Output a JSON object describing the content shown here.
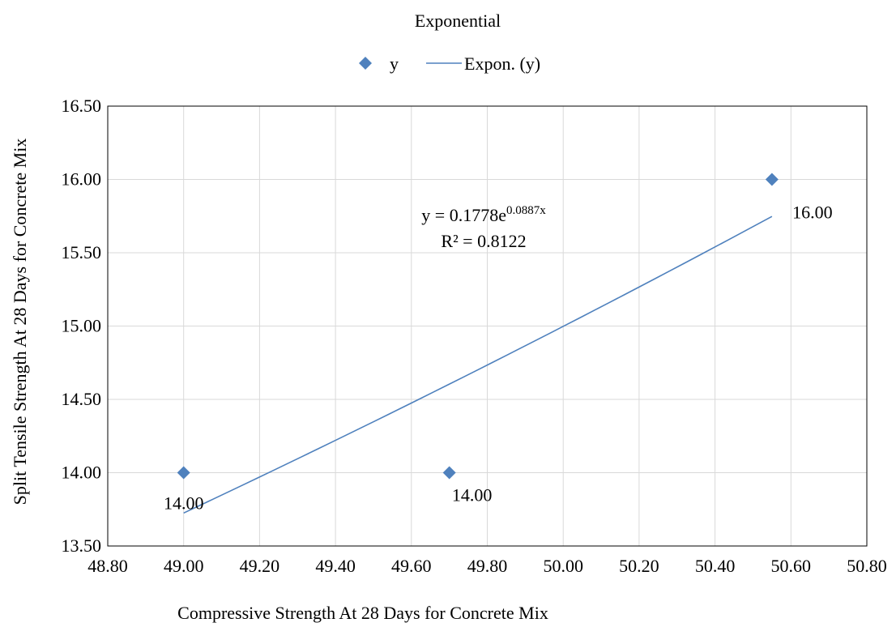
{
  "chart_data": {
    "type": "scatter",
    "title": "Exponential",
    "xlabel": "Compressive Strength At 28 Days for Concrete Mix",
    "ylabel": "Split Tensile Strength At 28 Days for Concrete Mix",
    "xlim": [
      48.8,
      50.8
    ],
    "ylim": [
      13.5,
      16.5
    ],
    "x_ticks": [
      "48.80",
      "49.00",
      "49.20",
      "49.40",
      "49.60",
      "49.80",
      "50.00",
      "50.20",
      "50.40",
      "50.60",
      "50.80"
    ],
    "y_ticks": [
      "13.50",
      "14.00",
      "14.50",
      "15.00",
      "15.50",
      "16.00",
      "16.50"
    ],
    "grid": true,
    "legend_position": "top",
    "series": [
      {
        "name": "y",
        "marker": "diamond",
        "color": "#4F81BD",
        "x": [
          49.0,
          49.7,
          50.55
        ],
        "y": [
          14.0,
          14.0,
          16.0
        ],
        "labels": [
          "14.00",
          "14.00",
          "16.00"
        ]
      }
    ],
    "trendline": {
      "name": "Expon. (y)",
      "type": "exponential",
      "color": "#4F81BD",
      "a": 0.1778,
      "b": 0.0887,
      "x_range": [
        49.0,
        50.55
      ],
      "equation_prefix": "y = 0.1778e",
      "equation_exponent": "0.0887x",
      "r_squared_text": "R² = 0.8122"
    }
  }
}
